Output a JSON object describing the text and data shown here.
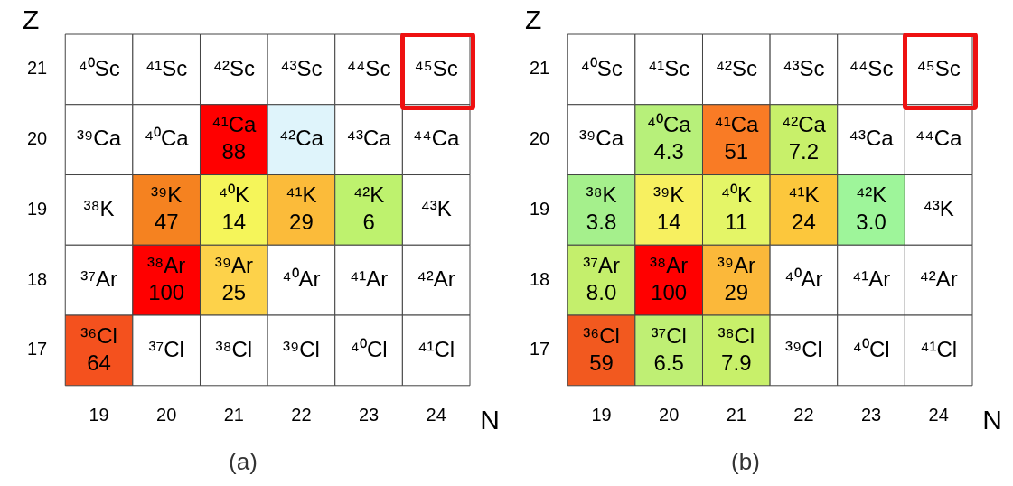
{
  "chart_data": [
    {
      "type": "heatmap",
      "data_labels": true,
      "title": "(a)",
      "xlabel": "N",
      "ylabel": "Z",
      "categories": [
        "19",
        "20",
        "21",
        "22",
        "23",
        "24"
      ],
      "y_categories": [
        "21",
        "20",
        "19",
        "18",
        "17"
      ],
      "cells": [
        [
          null,
          null,
          null,
          null,
          null,
          null
        ],
        [
          null,
          null,
          88,
          null,
          null,
          null
        ],
        [
          null,
          47,
          14,
          29,
          6,
          null
        ],
        [
          null,
          100,
          25,
          null,
          null,
          null
        ],
        [
          64,
          null,
          null,
          null,
          null,
          null
        ]
      ],
      "colors": [
        [
          "#ffffff",
          "#ffffff",
          "#ffffff",
          "#ffffff",
          "#ffffff",
          "#ffffff"
        ],
        [
          "#ffffff",
          "#ffffff",
          "#ff0000",
          "#dff4fb",
          "#ffffff",
          "#ffffff"
        ],
        [
          "#ffffff",
          "#f58220",
          "#f5f55a",
          "#fbbb3a",
          "#bef26e",
          "#ffffff"
        ],
        [
          "#ffffff",
          "#ff0000",
          "#fdd24a",
          "#ffffff",
          "#ffffff",
          "#ffffff"
        ],
        [
          "#f4511e",
          "#ffffff",
          "#ffffff",
          "#ffffff",
          "#ffffff",
          "#ffffff"
        ]
      ],
      "annotations": [
        "⁴⁰Sc",
        "⁴¹Sc",
        "⁴²Sc",
        "⁴³Sc",
        "⁴⁴Sc",
        "⁴⁵Sc",
        "³⁹Ca",
        "⁴⁰Ca",
        "⁴¹Ca",
        "⁴²Ca",
        "⁴³Ca",
        "⁴⁴Ca",
        "³⁸K",
        "³⁹K",
        "⁴⁰K",
        "⁴¹K",
        "⁴²K",
        "⁴³K",
        "³⁷Ar",
        "³⁸Ar",
        "³⁹Ar",
        "⁴⁰Ar",
        "⁴¹Ar",
        "⁴²Ar",
        "³⁶Cl",
        "³⁷Cl",
        "³⁸Cl",
        "³⁹Cl",
        "⁴⁰Cl",
        "⁴¹Cl"
      ]
    },
    {
      "type": "heatmap",
      "data_labels": true,
      "title": "(b)",
      "xlabel": "N",
      "ylabel": "Z",
      "categories": [
        "19",
        "20",
        "21",
        "22",
        "23",
        "24"
      ],
      "y_categories": [
        "21",
        "20",
        "19",
        "18",
        "17"
      ],
      "cells": [
        [
          null,
          null,
          null,
          null,
          null,
          null
        ],
        [
          null,
          4.3,
          51,
          7.2,
          null,
          null
        ],
        [
          3.8,
          14,
          11,
          24,
          3.0,
          null
        ],
        [
          8.0,
          100,
          29,
          null,
          null,
          null
        ],
        [
          59,
          6.5,
          7.9,
          null,
          null,
          null
        ]
      ],
      "cell_labels": [
        [
          null,
          null,
          null,
          null,
          null,
          null
        ],
        [
          null,
          "4.3",
          "51",
          "7.2",
          null,
          null
        ],
        [
          "3.8",
          "14",
          "11",
          "24",
          "3.0",
          null
        ],
        [
          "8.0",
          "100",
          "29",
          null,
          null,
          null
        ],
        [
          "59",
          "6.5",
          "7.9",
          null,
          null,
          null
        ]
      ],
      "colors": [
        [
          "#ffffff",
          "#ffffff",
          "#ffffff",
          "#ffffff",
          "#ffffff",
          "#ffffff"
        ],
        [
          "#ffffff",
          "#b7f07a",
          "#f97b25",
          "#c8f06a",
          "#ffffff",
          "#ffffff"
        ],
        [
          "#a5f08c",
          "#f7f060",
          "#e4f567",
          "#fcc73c",
          "#9ef59a",
          "#ffffff"
        ],
        [
          "#c4ef6c",
          "#ff0000",
          "#fbb83a",
          "#ffffff",
          "#ffffff",
          "#ffffff"
        ],
        [
          "#f2591f",
          "#bfef74",
          "#c8f06a",
          "#ffffff",
          "#ffffff",
          "#ffffff"
        ]
      ],
      "annotations": [
        "⁴⁰Sc",
        "⁴¹Sc",
        "⁴²Sc",
        "⁴³Sc",
        "⁴⁴Sc",
        "⁴⁵Sc",
        "³⁹Ca",
        "⁴⁰Ca",
        "⁴¹Ca",
        "⁴²Ca",
        "⁴³Ca",
        "⁴⁴Ca",
        "³⁸K",
        "³⁹K",
        "⁴⁰K",
        "⁴¹K",
        "⁴²K",
        "⁴³K",
        "³⁷Ar",
        "³⁸Ar",
        "³⁹Ar",
        "⁴⁰Ar",
        "⁴¹Ar",
        "⁴²Ar",
        "³⁶Cl",
        "³⁷Cl",
        "³⁸Cl",
        "³⁹Cl",
        "⁴⁰Cl",
        "⁴¹Cl"
      ]
    }
  ]
}
